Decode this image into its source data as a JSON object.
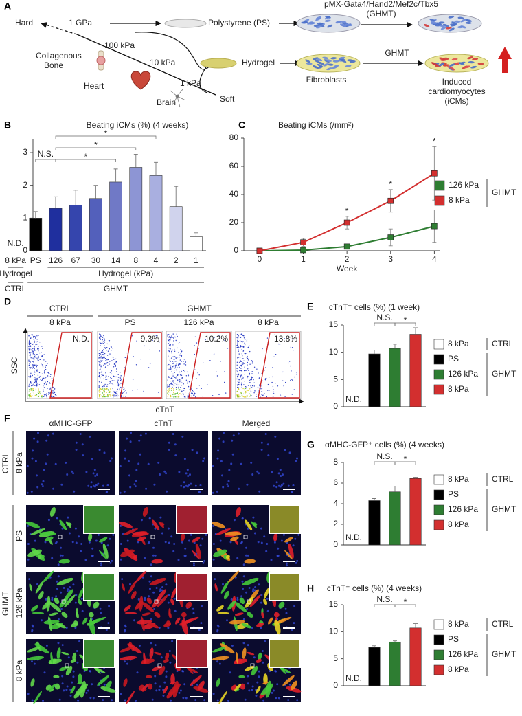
{
  "diagram": {
    "label": "A",
    "hard": "Hard",
    "gpa": "1 GPa",
    "ps": "Polystyrene (PS)",
    "vector": "pMX-Gata4/Hand2/Mef2c/Tbx5",
    "vector_abbr": "(GHMT)",
    "kpa100": "100 kPa",
    "bone": [
      "Collagenous",
      "Bone"
    ],
    "kpa10": "10 kPa",
    "hydrogel": "Hydrogel",
    "ghmt": "GHMT",
    "heart": "Heart",
    "kpa1": "1 kPa",
    "brain": "Brain",
    "soft": "Soft",
    "fibroblasts": "Fibroblasts",
    "icms": [
      "Induced",
      "cardiomyocytes",
      "(iCMs)"
    ]
  },
  "chart_data": [
    {
      "type": "bar",
      "label": "B",
      "title": "Beating iCMs (%) (4 weeks)",
      "categories": [
        "8 kPa",
        "PS",
        "126",
        "67",
        "30",
        "14",
        "8",
        "4",
        "2",
        "1"
      ],
      "values": [
        null,
        1.0,
        1.3,
        1.4,
        1.6,
        2.1,
        2.55,
        2.3,
        1.35,
        0.43
      ],
      "errors": [
        null,
        0.2,
        0.35,
        0.45,
        0.4,
        0.4,
        0.4,
        0.4,
        0.62,
        0.12
      ],
      "value_labels": [
        "N.D.",
        null,
        null,
        null,
        null,
        null,
        null,
        null,
        null,
        null
      ],
      "colors": [
        "#ffffff",
        "#000000",
        "#1f2f9e",
        "#3545ad",
        "#5360bb",
        "#7079c6",
        "#8d95d4",
        "#a9afe0",
        "#d0d3ed",
        "#ffffff"
      ],
      "ylim": [
        0,
        3.4
      ],
      "yticks": [
        0,
        1,
        2,
        3
      ],
      "significance": [
        {
          "between": [
            1,
            2
          ],
          "label": "N.S."
        },
        {
          "between": [
            2,
            5
          ],
          "label": "*"
        },
        {
          "between": [
            2,
            6
          ],
          "label": "*"
        },
        {
          "between": [
            2,
            7
          ],
          "label": "*"
        }
      ],
      "x_groups": [
        [
          {
            "label": "Hydrogel",
            "span": [
              0,
              0
            ]
          },
          {
            "label": "Hydrogel (kPa)",
            "span": [
              2,
              9
            ]
          }
        ],
        [
          {
            "label": "CTRL",
            "span": [
              0,
              0
            ]
          },
          {
            "label": "GHMT",
            "span": [
              1,
              9
            ]
          }
        ]
      ]
    },
    {
      "type": "line",
      "label": "C",
      "title": "Beating iCMs (/mm²)",
      "x": [
        0,
        1,
        2,
        3,
        4
      ],
      "xlim": [
        -0.36,
        4.12
      ],
      "xticks": [
        0,
        1,
        2,
        3,
        4
      ],
      "ylim": [
        0,
        80
      ],
      "yticks": [
        0,
        20,
        40,
        60,
        80
      ],
      "x_label": "Week",
      "series": [
        {
          "name": "126 kPa",
          "color": "#2e7d32",
          "values": [
            0,
            0.5,
            3,
            9.5,
            17.5
          ],
          "errors": [
            0.3,
            0.8,
            1.5,
            6,
            11.5
          ]
        },
        {
          "name": "8 kPa",
          "color": "#d32f2f",
          "values": [
            0,
            6,
            20,
            35.5,
            55
          ],
          "errors": [
            0.3,
            2.8,
            4.5,
            8,
            19
          ]
        }
      ],
      "legend_group": "GHMT",
      "annotations": [
        {
          "x": 2,
          "label": "*"
        },
        {
          "x": 3,
          "label": "*"
        },
        {
          "x": 4,
          "label": "*"
        }
      ]
    },
    {
      "type": "bar",
      "label": "E",
      "title": "cTnT⁺ cells (%) (1 week)",
      "categories": [
        "8 kPa",
        "PS",
        "126 kPa",
        "8 kPa"
      ],
      "colors": [
        "#ffffff",
        "#000000",
        "#2e7d32",
        "#d32f2f"
      ],
      "values": [
        null,
        9.7,
        10.7,
        13.3
      ],
      "errors": [
        null,
        0.7,
        0.8,
        1.2
      ],
      "value_labels": [
        "N.D.",
        null,
        null,
        null
      ],
      "ylim": [
        0,
        15
      ],
      "yticks": [
        0,
        5,
        10,
        15
      ],
      "significance": [
        {
          "between": [
            1,
            2
          ],
          "label": "N.S."
        },
        {
          "between": [
            2,
            3
          ],
          "label": "*"
        }
      ],
      "legend_groups": [
        {
          "label": "CTRL",
          "span": [
            0,
            0
          ]
        },
        {
          "label": "GHMT",
          "span": [
            1,
            3
          ]
        }
      ]
    },
    {
      "type": "bar",
      "label": "G",
      "title": "αMHC-GFP⁺ cells (%) (4 weeks)",
      "categories": [
        "8 kPa",
        "PS",
        "126 kPa",
        "8 kPa"
      ],
      "colors": [
        "#ffffff",
        "#000000",
        "#2e7d32",
        "#d32f2f"
      ],
      "values": [
        null,
        4.3,
        5.15,
        6.45
      ],
      "errors": [
        null,
        0.2,
        0.55,
        0.12
      ],
      "value_labels": [
        "N.D.",
        null,
        null,
        null
      ],
      "ylim": [
        0,
        8
      ],
      "yticks": [
        0,
        2,
        4,
        6,
        8
      ],
      "significance": [
        {
          "between": [
            1,
            2
          ],
          "label": "N.S."
        },
        {
          "between": [
            2,
            3
          ],
          "label": "*"
        }
      ],
      "legend_groups": [
        {
          "label": "CTRL",
          "span": [
            0,
            0
          ]
        },
        {
          "label": "GHMT",
          "span": [
            1,
            3
          ]
        }
      ]
    },
    {
      "type": "bar",
      "label": "H",
      "title": "cTnT⁺ cells (%) (4 weeks)",
      "categories": [
        "8 kPa",
        "PS",
        "126 kPa",
        "8 kPa"
      ],
      "colors": [
        "#ffffff",
        "#000000",
        "#2e7d32",
        "#d32f2f"
      ],
      "values": [
        null,
        7.1,
        8.1,
        10.7
      ],
      "errors": [
        null,
        0.3,
        0.2,
        0.8
      ],
      "value_labels": [
        "N.D.",
        null,
        null,
        null
      ],
      "ylim": [
        0,
        15
      ],
      "yticks": [
        0,
        5,
        10,
        15
      ],
      "significance": [
        {
          "between": [
            1,
            2
          ],
          "label": "N.S."
        },
        {
          "between": [
            2,
            3
          ],
          "label": "*"
        }
      ],
      "legend_groups": [
        {
          "label": "CTRL",
          "span": [
            0,
            0
          ]
        },
        {
          "label": "GHMT",
          "span": [
            1,
            3
          ]
        }
      ]
    }
  ],
  "flow": {
    "label": "D",
    "groups": [
      {
        "label": "CTRL",
        "span": [
          0,
          0
        ]
      },
      {
        "label": "GHMT",
        "span": [
          1,
          3
        ]
      }
    ],
    "plots": [
      {
        "title": "8 kPa",
        "gate": "N.D."
      },
      {
        "title": "PS",
        "gate": "9.3%"
      },
      {
        "title": "126 kPa",
        "gate": "10.2%"
      },
      {
        "title": "8 kPa",
        "gate": "13.8%"
      }
    ],
    "x_label": "cTnT",
    "y_label": "SSC"
  },
  "micrographs": {
    "label": "F",
    "columns": [
      "αMHC-GFP",
      "cTnT",
      "Merged"
    ],
    "rows": [
      "8 kPa",
      "PS",
      "126 kPa",
      "8 kPa"
    ],
    "groups": [
      {
        "label": "CTRL",
        "span": [
          0,
          0
        ]
      },
      {
        "label": "GHMT",
        "span": [
          1,
          3
        ]
      }
    ]
  }
}
